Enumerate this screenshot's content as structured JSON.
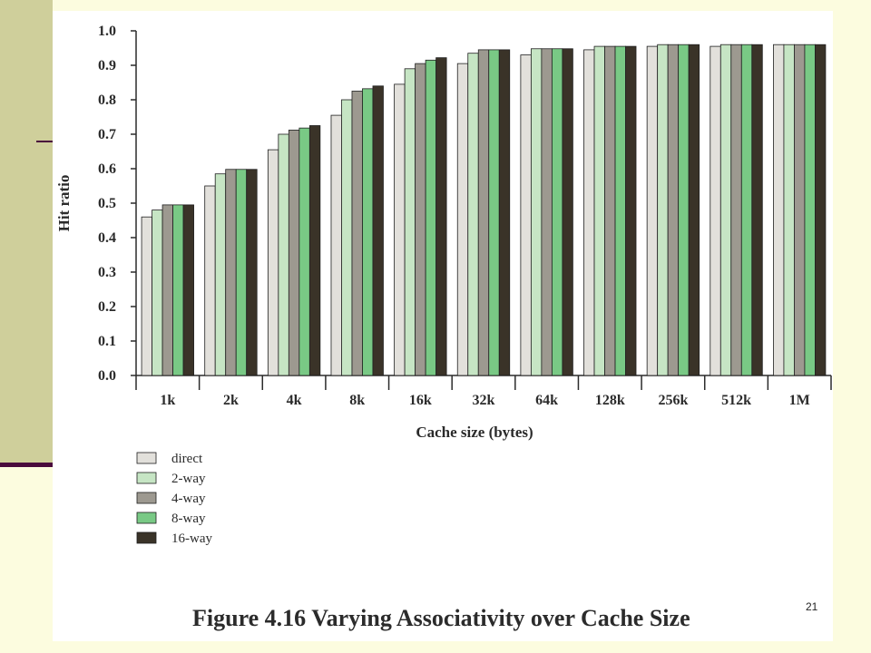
{
  "slide": {
    "number": "21",
    "caption": "Figure 4.16 Varying Associativity over Cache Size"
  },
  "chart_data": {
    "type": "bar",
    "title": "",
    "xlabel": "Cache size (bytes)",
    "ylabel": "Hit ratio",
    "ylim": [
      0.0,
      1.0
    ],
    "yticks": [
      "0.0",
      "0.1",
      "0.2",
      "0.3",
      "0.4",
      "0.5",
      "0.6",
      "0.7",
      "0.8",
      "0.9",
      "1.0"
    ],
    "categories": [
      "1k",
      "2k",
      "4k",
      "8k",
      "16k",
      "32k",
      "64k",
      "128k",
      "256k",
      "512k",
      "1M"
    ],
    "grid": false,
    "legend_position": "bottom-left",
    "series": [
      {
        "name": "direct",
        "color": "#e2e0db",
        "values": [
          0.46,
          0.55,
          0.655,
          0.755,
          0.845,
          0.905,
          0.93,
          0.945,
          0.955,
          0.955,
          0.96
        ]
      },
      {
        "name": "2-way",
        "color": "#c6e5c4",
        "values": [
          0.48,
          0.585,
          0.7,
          0.8,
          0.89,
          0.935,
          0.948,
          0.955,
          0.96,
          0.96,
          0.96
        ]
      },
      {
        "name": "4-way",
        "color": "#9d9990",
        "values": [
          0.495,
          0.598,
          0.712,
          0.825,
          0.905,
          0.945,
          0.948,
          0.955,
          0.96,
          0.96,
          0.96
        ]
      },
      {
        "name": "8-way",
        "color": "#79c985",
        "values": [
          0.495,
          0.598,
          0.718,
          0.832,
          0.915,
          0.945,
          0.948,
          0.955,
          0.96,
          0.96,
          0.96
        ]
      },
      {
        "name": "16-way",
        "color": "#3a3328",
        "values": [
          0.495,
          0.598,
          0.725,
          0.84,
          0.922,
          0.945,
          0.948,
          0.955,
          0.96,
          0.96,
          0.96
        ]
      }
    ]
  }
}
